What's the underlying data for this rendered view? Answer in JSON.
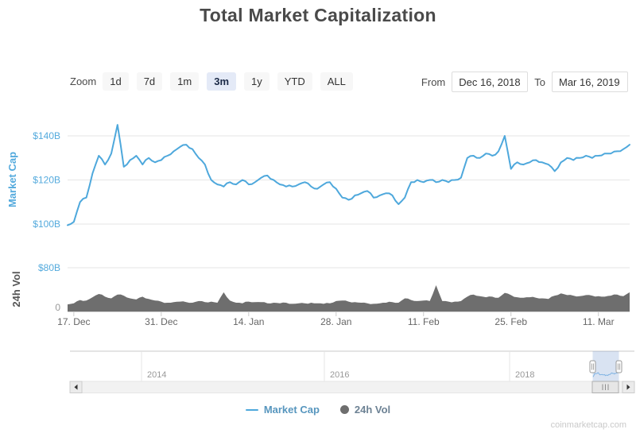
{
  "header": {
    "title": "Total Market Capitalization"
  },
  "controls": {
    "zoom_label": "Zoom",
    "zoom_buttons": [
      "1d",
      "7d",
      "1m",
      "3m",
      "1y",
      "YTD",
      "ALL"
    ],
    "zoom_selected": "3m",
    "from_label": "From",
    "from_value": "Dec 16, 2018",
    "to_label": "To",
    "to_value": "Mar 16, 2019"
  },
  "legend": {
    "market_cap_label": "Market Cap",
    "vol_label": "24h Vol"
  },
  "watermark": "coinmarketcap.com",
  "colors": {
    "line_blue": "#4ea8dc",
    "axis_blue": "#54aadd",
    "vol_gray": "#6e6e6e",
    "grid": "#e6e6e6",
    "axis_text": "#666666",
    "nav_year": "#999999",
    "nav_selection": "rgba(102,144,205,0.25)"
  },
  "chart_data": [
    {
      "type": "line",
      "name": "Market Cap",
      "ylabel": "Market Cap",
      "unit": "USD billions",
      "ylim": [
        95,
        150
      ],
      "ytick_values": [
        100,
        120,
        140
      ],
      "ytick_labels": [
        "$100B",
        "$120B",
        "$140B"
      ],
      "x_start": "Dec 16, 2018",
      "x_end": "Mar 16, 2019",
      "x_days_total": 90,
      "xtick_days": [
        1,
        15,
        29,
        43,
        57,
        71,
        85
      ],
      "xtick_labels": [
        "17. Dec",
        "31. Dec",
        "14. Jan",
        "28. Jan",
        "11. Feb",
        "25. Feb",
        "11. Mar"
      ],
      "values": [
        99.5,
        101,
        110,
        112,
        123,
        131,
        127,
        132,
        145,
        126,
        129,
        131,
        127,
        130,
        128,
        129,
        131,
        133,
        135,
        136,
        134,
        130,
        127,
        120,
        118,
        117,
        119,
        118,
        120,
        118,
        119,
        121,
        122,
        120,
        118,
        117,
        117,
        118,
        119,
        117,
        116,
        118,
        119,
        116,
        112,
        111,
        113,
        114,
        115,
        112,
        113,
        114,
        113,
        109,
        112,
        119,
        120,
        119,
        120,
        119,
        120,
        119,
        120,
        121,
        130,
        131,
        130,
        132,
        131,
        133,
        140,
        125,
        128,
        127,
        128,
        129,
        128,
        127,
        124,
        128,
        130,
        129,
        130,
        131,
        130,
        131,
        132,
        132,
        133,
        134,
        136
      ]
    },
    {
      "type": "area",
      "name": "24h Vol",
      "ylabel": "24h Vol",
      "unit": "USD billions",
      "ylim": [
        0,
        80
      ],
      "ytick_values": [
        0,
        80
      ],
      "ytick_labels": [
        "0",
        "$80B"
      ],
      "values": [
        13,
        15,
        21,
        20,
        26,
        32,
        27,
        24,
        31,
        29,
        24,
        22,
        27,
        23,
        20,
        18,
        16,
        17,
        18,
        17,
        16,
        19,
        17,
        18,
        16,
        35,
        20,
        16,
        15,
        18,
        17,
        17,
        15,
        16,
        15,
        16,
        14,
        15,
        15,
        16,
        15,
        14,
        15,
        19,
        20,
        18,
        17,
        16,
        15,
        14,
        15,
        16,
        17,
        16,
        24,
        21,
        19,
        20,
        19,
        48,
        19,
        18,
        18,
        19,
        27,
        31,
        28,
        26,
        27,
        25,
        34,
        30,
        26,
        25,
        26,
        25,
        24,
        23,
        29,
        33,
        30,
        29,
        28,
        30,
        29,
        28,
        27,
        29,
        31,
        28,
        35
      ]
    },
    {
      "type": "navigator",
      "year_labels": [
        "2014",
        "2016",
        "2018"
      ],
      "selected_range": "Dec 16, 2018 - Mar 16, 2019"
    }
  ]
}
